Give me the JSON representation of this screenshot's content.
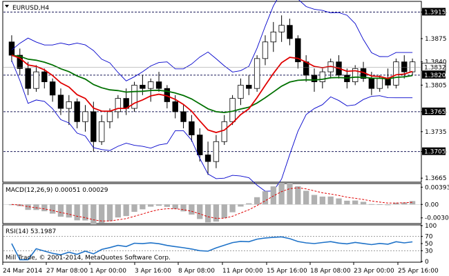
{
  "window": {
    "symbol_label": "EURUSD,H4",
    "copyright": "Mill Trade, © 2001-2014, MetaQuotes Software Corp."
  },
  "price_panel": {
    "y_ticks": [
      "1.3915",
      "1.3875",
      "1.3840",
      "1.3805",
      "1.3765",
      "1.3735",
      "1.3705",
      "1.3665"
    ],
    "y_tick_values": [
      1.3915,
      1.3875,
      1.384,
      1.3805,
      1.3765,
      1.3735,
      1.3705,
      1.3665
    ],
    "level_lines": [
      1.3915,
      1.382,
      1.3765,
      1.3705
    ],
    "level_labels": [
      "1.3915",
      "1.3820",
      "1.3765",
      "1.3705"
    ],
    "current_price": "1.3832",
    "current_price_value": 1.3832,
    "ylim": [
      1.366,
      1.393
    ]
  },
  "macd_panel": {
    "label": "MACD(12,26,9) 0.00051 0.00029",
    "y_ticks": [
      "0.00393",
      "0.00",
      "-0.00306"
    ],
    "y_tick_values": [
      0.00393,
      0.0,
      -0.00306
    ],
    "ylim": [
      -0.0042,
      0.0046
    ]
  },
  "rsi_panel": {
    "label": "RSI(14) 53.1987",
    "y_ticks": [
      "100",
      "70",
      "50",
      "30",
      "0"
    ],
    "y_tick_values": [
      100,
      70,
      50,
      30,
      0
    ],
    "ylim": [
      0,
      100
    ]
  },
  "x_axis": {
    "labels": [
      "24 Mar 2014",
      "27 Mar 08:00",
      "1 Apr 00:00",
      "3 Apr 16:00",
      "8 Apr 08:00",
      "11 Apr 00:00",
      "15 Apr 16:00",
      "18 Apr 08:00",
      "23 Apr 00:00",
      "25 Apr 16:00"
    ]
  },
  "colors": {
    "background": "#ffffff",
    "candles": "#000000",
    "bollinger": "#0000cc",
    "ma_fast": "#e00000",
    "ma_slow": "#007000",
    "macd_hist": "#b0b0b0",
    "macd_signal": "#e00000",
    "rsi": "#1e72c8",
    "level_line": "#1a1a5a",
    "label_box": "#000000",
    "label_text": "#ffffff"
  },
  "chart_data": {
    "type": "candlestick",
    "symbol": "EURUSD",
    "timeframe": "H4",
    "candles_approx": [
      [
        1.387,
        1.388,
        1.384,
        1.385
      ],
      [
        1.385,
        1.386,
        1.382,
        1.383
      ],
      [
        1.383,
        1.384,
        1.379,
        1.38
      ],
      [
        1.38,
        1.3835,
        1.3795,
        1.3825
      ],
      [
        1.3825,
        1.383,
        1.38,
        1.381
      ],
      [
        1.381,
        1.3815,
        1.378,
        1.379
      ],
      [
        1.379,
        1.38,
        1.376,
        1.377
      ],
      [
        1.377,
        1.379,
        1.3745,
        1.378
      ],
      [
        1.378,
        1.3785,
        1.374,
        1.375
      ],
      [
        1.375,
        1.3775,
        1.3735,
        1.3765
      ],
      [
        1.3765,
        1.378,
        1.3705,
        1.372
      ],
      [
        1.372,
        1.376,
        1.3715,
        1.375
      ],
      [
        1.375,
        1.377,
        1.374,
        1.3765
      ],
      [
        1.3765,
        1.379,
        1.3755,
        1.3785
      ],
      [
        1.3785,
        1.38,
        1.376,
        1.377
      ],
      [
        1.377,
        1.381,
        1.3765,
        1.3805
      ],
      [
        1.3805,
        1.382,
        1.379,
        1.38
      ],
      [
        1.38,
        1.3815,
        1.378,
        1.381
      ],
      [
        1.381,
        1.3825,
        1.3795,
        1.38
      ],
      [
        1.38,
        1.3805,
        1.377,
        1.378
      ],
      [
        1.378,
        1.379,
        1.3755,
        1.3765
      ],
      [
        1.3765,
        1.3775,
        1.374,
        1.375
      ],
      [
        1.375,
        1.376,
        1.372,
        1.373
      ],
      [
        1.373,
        1.374,
        1.369,
        1.37
      ],
      [
        1.37,
        1.372,
        1.367,
        1.369
      ],
      [
        1.369,
        1.373,
        1.368,
        1.372
      ],
      [
        1.372,
        1.376,
        1.3715,
        1.375
      ],
      [
        1.375,
        1.379,
        1.3745,
        1.3785
      ],
      [
        1.3785,
        1.3815,
        1.3775,
        1.3805
      ],
      [
        1.3805,
        1.382,
        1.379,
        1.38
      ],
      [
        1.38,
        1.385,
        1.3795,
        1.3845
      ],
      [
        1.3845,
        1.388,
        1.3835,
        1.387
      ],
      [
        1.387,
        1.39,
        1.3855,
        1.3885
      ],
      [
        1.3885,
        1.391,
        1.387,
        1.3895
      ],
      [
        1.3895,
        1.3905,
        1.3865,
        1.3875
      ],
      [
        1.3875,
        1.388,
        1.383,
        1.384
      ],
      [
        1.384,
        1.385,
        1.381,
        1.382
      ],
      [
        1.382,
        1.383,
        1.3795,
        1.381
      ],
      [
        1.381,
        1.383,
        1.38,
        1.3825
      ],
      [
        1.3825,
        1.3845,
        1.3815,
        1.384
      ],
      [
        1.384,
        1.385,
        1.3815,
        1.382
      ],
      [
        1.382,
        1.383,
        1.38,
        1.381
      ],
      [
        1.381,
        1.3835,
        1.3805,
        1.383
      ],
      [
        1.383,
        1.384,
        1.381,
        1.3815
      ],
      [
        1.3815,
        1.3825,
        1.379,
        1.38
      ],
      [
        1.38,
        1.382,
        1.3795,
        1.3815
      ],
      [
        1.3815,
        1.383,
        1.38,
        1.3805
      ],
      [
        1.3805,
        1.3845,
        1.38,
        1.384
      ],
      [
        1.384,
        1.385,
        1.3815,
        1.3825
      ],
      [
        1.3825,
        1.3845,
        1.382,
        1.384
      ]
    ]
  }
}
